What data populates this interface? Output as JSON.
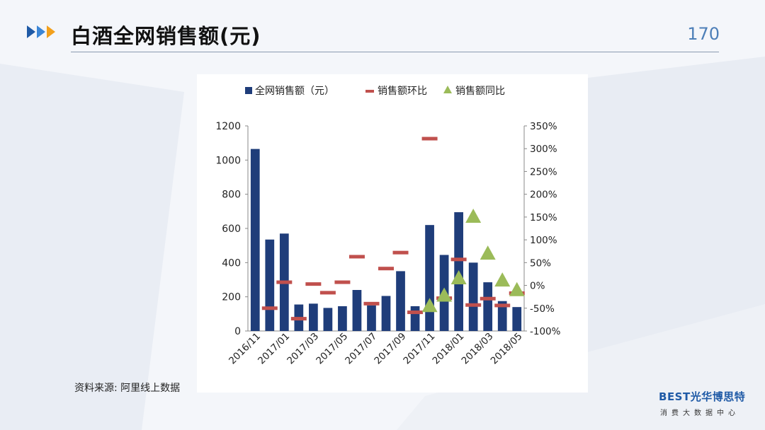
{
  "header": {
    "title": "白酒全网销售额(元)",
    "page_number": "170"
  },
  "source": "资料来源: 阿里线上数据",
  "logo": {
    "main": "EST光华博思特",
    "letter": "B",
    "sub": "消费大数据中心"
  },
  "colors": {
    "bar": "#1f3d7a",
    "mom_marker": "#c0504d",
    "yoy_marker": "#9bbb59",
    "accent_blue": "#1f5aa6",
    "accent_orange": "#f2a01c"
  },
  "chart_data": {
    "type": "bar",
    "title": "",
    "legend_position": "top",
    "grid": false,
    "categories": [
      "2016/11",
      "2016/12",
      "2017/01",
      "2017/02",
      "2017/03",
      "2017/04",
      "2017/05",
      "2017/06",
      "2017/07",
      "2017/08",
      "2017/09",
      "2017/10",
      "2017/11",
      "2017/12",
      "2018/01",
      "2018/02",
      "2018/03",
      "2018/04",
      "2018/05"
    ],
    "x_tick_labels": [
      "2016/11",
      "2017/01",
      "2017/03",
      "2017/05",
      "2017/07",
      "2017/09",
      "2017/11",
      "2018/01",
      "2018/03",
      "2018/05"
    ],
    "y_left": {
      "ticks": [
        "0",
        "200",
        "400",
        "600",
        "800",
        "1000",
        "1200"
      ],
      "ylim": [
        0,
        1200
      ]
    },
    "y_right": {
      "ticks": [
        "-100%",
        "-50%",
        "0%",
        "50%",
        "100%",
        "150%",
        "200%",
        "250%",
        "300%",
        "350%"
      ],
      "ylim": [
        -100,
        350
      ],
      "unit": "%"
    },
    "series": [
      {
        "name": "全网销售额（元）",
        "kind": "bar",
        "axis": "left",
        "values": [
          1065,
          535,
          570,
          155,
          160,
          135,
          145,
          240,
          150,
          205,
          350,
          145,
          620,
          445,
          695,
          400,
          285,
          175,
          140
        ]
      },
      {
        "name": "销售额环比",
        "kind": "dash",
        "axis": "right",
        "values": [
          null,
          -50,
          7,
          -73,
          3,
          -16,
          7,
          63,
          -40,
          37,
          72,
          -59,
          322,
          -28,
          57,
          -43,
          -29,
          -44,
          -17
        ]
      },
      {
        "name": "销售额同比",
        "kind": "triangle",
        "axis": "right",
        "values": [
          null,
          null,
          null,
          null,
          null,
          null,
          null,
          null,
          null,
          null,
          null,
          null,
          -43,
          -20,
          18,
          153,
          72,
          13,
          -8
        ]
      }
    ]
  }
}
